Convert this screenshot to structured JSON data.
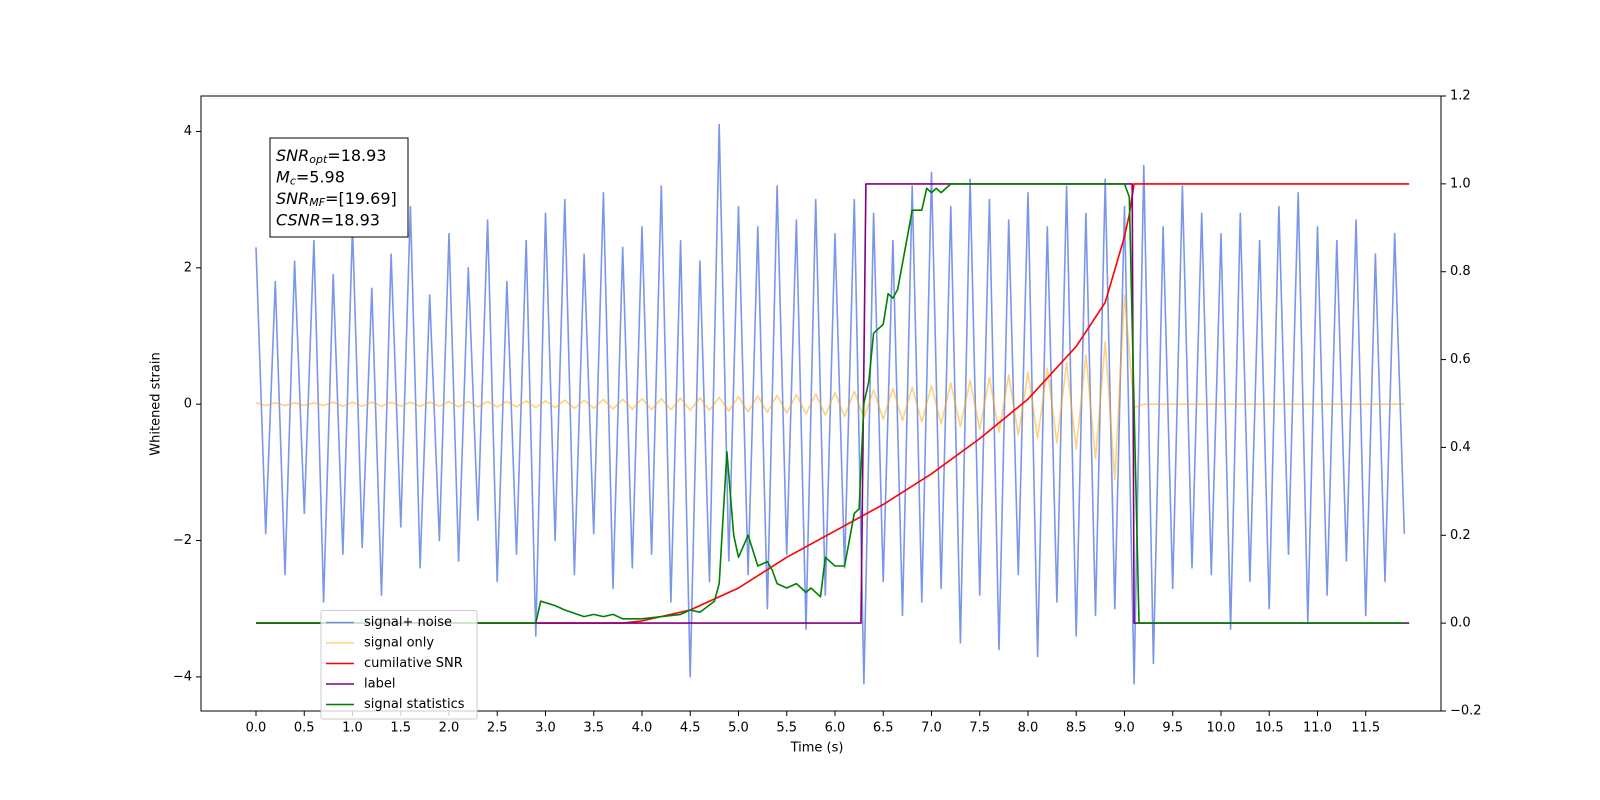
{
  "chart_data": {
    "type": "line",
    "xlabel": "Time (s)",
    "ylabel": "Whitened strain",
    "annotations": [
      {
        "base": "SNR",
        "sub": "opt",
        "rest": "=18.93"
      },
      {
        "base": "M",
        "sub": "c",
        "rest": "=5.98"
      },
      {
        "base": "SNR",
        "sub": "MF",
        "rest": "=[19.69]"
      },
      {
        "base": "CSNR",
        "sub": "",
        "rest": "=18.93"
      }
    ],
    "xlim": [
      -0.57,
      12.28
    ],
    "ylim": [
      -4.5,
      4.52
    ],
    "y2lim": [
      -0.2,
      1.2
    ],
    "xticks": [
      {
        "value": 0,
        "label": "0.0"
      },
      0.5,
      {
        "value": 1,
        "label": "1.0"
      },
      1.5,
      {
        "value": 2,
        "label": "2.0"
      },
      2.5,
      {
        "value": 3,
        "label": "3.0"
      },
      3.5,
      {
        "value": 4,
        "label": "4.0"
      },
      4.5,
      {
        "value": 5,
        "label": "5.0"
      },
      5.5,
      {
        "value": 6,
        "label": "6.0"
      },
      6.5,
      {
        "value": 7,
        "label": "7.0"
      },
      7.5,
      {
        "value": 8,
        "label": "8.0"
      },
      8.5,
      {
        "value": 9,
        "label": "9.0"
      },
      9.5,
      {
        "value": 10,
        "label": "10.0"
      },
      10.5,
      {
        "value": 11,
        "label": "11.0"
      },
      11.5
    ],
    "yticks": [
      {
        "value": -4,
        "label": "−4"
      },
      {
        "value": -2,
        "label": "−2"
      },
      0,
      2,
      4
    ],
    "y2ticks": [
      {
        "value": -0.2,
        "label": "−0.2"
      },
      {
        "value": 0,
        "label": "0.0"
      },
      0.2,
      0.4,
      0.6,
      0.8,
      {
        "value": 1,
        "label": "1.0"
      },
      1.2
    ],
    "legend": "lower left",
    "x": [
      0,
      0.1,
      0.2,
      0.3,
      0.4,
      0.5,
      0.6,
      0.7,
      0.8,
      0.9,
      1,
      1.1,
      1.2,
      1.3,
      1.4,
      1.5,
      1.6,
      1.7,
      1.8,
      1.9,
      2,
      2.1,
      2.2,
      2.3,
      2.4,
      2.5,
      2.6,
      2.7,
      2.8,
      2.9,
      3,
      3.1,
      3.2,
      3.3,
      3.4,
      3.5,
      3.6,
      3.7,
      3.8,
      3.9,
      4,
      4.1,
      4.2,
      4.3,
      4.4,
      4.5,
      4.6,
      4.7,
      4.8,
      4.9,
      5,
      5.1,
      5.2,
      5.3,
      5.4,
      5.5,
      5.6,
      5.7,
      5.8,
      5.9,
      6,
      6.1,
      6.2,
      6.3,
      6.4,
      6.5,
      6.6,
      6.7,
      6.8,
      6.9,
      7,
      7.1,
      7.2,
      7.3,
      7.4,
      7.5,
      7.6,
      7.7,
      7.8,
      7.9,
      8,
      8.1,
      8.2,
      8.3,
      8.4,
      8.5,
      8.6,
      8.7,
      8.8,
      8.9,
      9,
      9.1,
      9.2,
      9.3,
      9.4,
      9.5,
      9.6,
      9.7,
      9.8,
      9.9,
      10,
      10.1,
      10.2,
      10.3,
      10.4,
      10.5,
      10.6,
      10.7,
      10.8,
      10.9,
      11,
      11.1,
      11.2,
      11.3,
      11.4,
      11.5,
      11.6,
      11.7,
      11.8,
      11.9
    ],
    "series": [
      {
        "name": "signal+ noise",
        "color": "#4169e1",
        "alpha": 0.7,
        "values": [
          2.3,
          -1.9,
          1.8,
          -2.5,
          2.1,
          -1.6,
          2.4,
          -2.9,
          1.9,
          -2.2,
          2.6,
          -2.1,
          1.7,
          -2.8,
          2.2,
          -1.8,
          2.9,
          -2.4,
          1.6,
          -2.0,
          2.5,
          -2.3,
          2.0,
          -1.7,
          2.7,
          -2.6,
          1.8,
          -2.2,
          2.4,
          -3.4,
          2.8,
          -2.0,
          3.0,
          -2.5,
          2.2,
          -1.9,
          3.1,
          -2.7,
          2.3,
          -2.4,
          2.6,
          -2.2,
          3.2,
          -2.9,
          2.4,
          -4.0,
          2.1,
          -2.6,
          4.1,
          -2.3,
          2.9,
          -2.5,
          2.6,
          -3.0,
          3.2,
          -2.2,
          2.7,
          -3.3,
          3.0,
          -2.8,
          2.5,
          -2.4,
          3.0,
          -4.1,
          2.8,
          -2.6,
          2.4,
          -3.1,
          3.2,
          -2.9,
          3.4,
          -2.7,
          2.9,
          -3.5,
          3.3,
          -2.8,
          3.0,
          -3.6,
          2.7,
          -2.5,
          3.1,
          -3.7,
          2.6,
          -2.9,
          3.2,
          -3.4,
          2.8,
          -3.1,
          3.3,
          -3.0,
          2.9,
          -4.1,
          3.5,
          -3.8,
          2.6,
          -2.7,
          3.2,
          -2.4,
          2.8,
          -2.5,
          2.5,
          -3.3,
          2.8,
          -2.6,
          2.4,
          -3.0,
          2.9,
          -2.2,
          3.1,
          -3.2,
          2.6,
          -2.8,
          2.4,
          -2.3,
          2.7,
          -3.1,
          2.2,
          -2.6,
          2.5,
          -1.9
        ]
      },
      {
        "name": "signal only",
        "color": "#ffa500",
        "alpha": 0.5,
        "values": [
          0.02,
          -0.02,
          0.02,
          -0.02,
          0.02,
          -0.02,
          0.02,
          -0.02,
          0.03,
          -0.03,
          0.03,
          -0.03,
          0.03,
          -0.03,
          0.03,
          -0.03,
          0.03,
          -0.03,
          0.03,
          -0.03,
          0.04,
          -0.04,
          0.04,
          -0.04,
          0.04,
          -0.04,
          0.04,
          -0.04,
          0.05,
          -0.05,
          0.05,
          -0.05,
          0.06,
          -0.06,
          0.06,
          -0.06,
          0.07,
          -0.07,
          0.07,
          -0.07,
          0.08,
          -0.08,
          0.08,
          -0.08,
          0.09,
          -0.09,
          0.09,
          -0.09,
          0.1,
          -0.1,
          0.11,
          -0.11,
          0.12,
          -0.12,
          0.13,
          -0.13,
          0.14,
          -0.14,
          0.15,
          -0.16,
          0.17,
          -0.18,
          0.19,
          -0.2,
          0.21,
          -0.22,
          0.23,
          -0.24,
          0.25,
          -0.26,
          0.27,
          -0.29,
          0.31,
          -0.33,
          0.35,
          -0.37,
          0.39,
          -0.41,
          0.43,
          -0.45,
          0.47,
          -0.5,
          0.53,
          -0.57,
          0.61,
          -0.66,
          0.72,
          -0.8,
          0.92,
          -1.1,
          1.6,
          -0.05,
          0,
          0,
          0,
          0,
          0,
          0,
          0,
          0,
          0,
          0,
          0,
          0,
          0,
          0,
          0,
          0,
          0,
          0,
          0,
          0,
          0,
          0,
          0,
          0,
          0,
          0,
          0,
          0
        ]
      },
      {
        "name": "cumilative SNR",
        "color": "#ff0000",
        "axis": "y2",
        "x": [
          0,
          3.8,
          4.0,
          4.5,
          5.0,
          5.5,
          6.0,
          6.5,
          7.0,
          7.5,
          8.0,
          8.5,
          8.8,
          9.0,
          9.05,
          9.1,
          11.95
        ],
        "values": [
          0,
          0,
          0.005,
          0.03,
          0.08,
          0.15,
          0.21,
          0.27,
          0.34,
          0.42,
          0.51,
          0.63,
          0.73,
          0.88,
          0.93,
          1.0,
          1.0
        ]
      },
      {
        "name": "label",
        "color": "#800080",
        "axis": "y2",
        "x": [
          0,
          6.27,
          6.32,
          9.08,
          9.1,
          11.95
        ],
        "values": [
          0,
          0,
          1,
          1,
          0,
          0
        ]
      },
      {
        "name": "signal statistics",
        "color": "#008000",
        "axis": "y2",
        "x": [
          0,
          2.9,
          2.95,
          3.1,
          3.2,
          3.4,
          3.5,
          3.6,
          3.7,
          3.8,
          4.0,
          4.4,
          4.5,
          4.6,
          4.75,
          4.8,
          4.88,
          4.95,
          5.0,
          5.1,
          5.2,
          5.3,
          5.35,
          5.4,
          5.5,
          5.6,
          5.7,
          5.75,
          5.85,
          5.9,
          6.0,
          6.1,
          6.2,
          6.25,
          6.3,
          6.35,
          6.4,
          6.5,
          6.55,
          6.6,
          6.65,
          6.75,
          6.8,
          6.9,
          6.95,
          7.0,
          7.05,
          7.1,
          7.2,
          9.0,
          9.05,
          9.15,
          11.9
        ],
        "values": [
          0,
          0,
          0.05,
          0.04,
          0.03,
          0.015,
          0.02,
          0.015,
          0.02,
          0.01,
          0.01,
          0.02,
          0.03,
          0.025,
          0.05,
          0.09,
          0.39,
          0.2,
          0.15,
          0.2,
          0.13,
          0.14,
          0.12,
          0.09,
          0.08,
          0.09,
          0.07,
          0.08,
          0.06,
          0.15,
          0.13,
          0.13,
          0.25,
          0.26,
          0.5,
          0.55,
          0.66,
          0.68,
          0.75,
          0.74,
          0.76,
          0.88,
          0.94,
          0.94,
          0.99,
          0.98,
          0.99,
          0.98,
          1.0,
          1.0,
          0.97,
          0,
          0
        ]
      }
    ]
  }
}
